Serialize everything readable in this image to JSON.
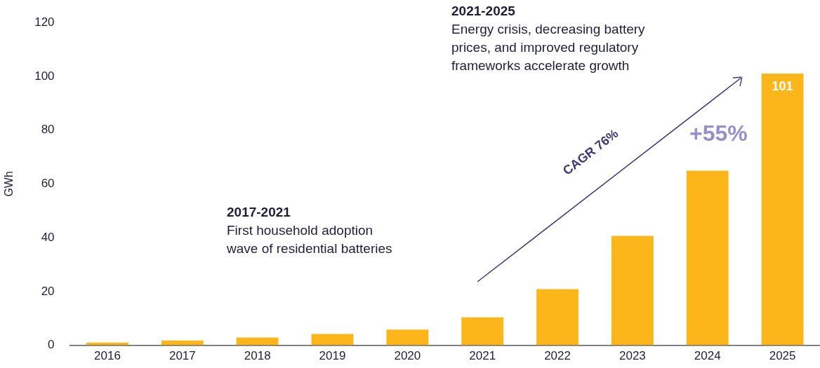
{
  "chart_data": {
    "type": "bar",
    "categories": [
      "2016",
      "2017",
      "2018",
      "2019",
      "2020",
      "2021",
      "2022",
      "2023",
      "2024",
      "2025"
    ],
    "values": [
      1.0,
      1.8,
      2.9,
      4.2,
      5.8,
      10.4,
      20.9,
      40.7,
      64.9,
      101
    ],
    "value_labels": [
      null,
      null,
      null,
      null,
      null,
      null,
      null,
      null,
      null,
      "101"
    ],
    "color": "#fcb61a",
    "ylabel": "GWh",
    "ylim": [
      0,
      120
    ],
    "yticks": [
      0,
      20,
      40,
      60,
      80,
      100,
      120
    ],
    "grid": false,
    "legend": false,
    "annotations": [
      "2017-2021",
      "First household adoption\nwave of residential batteries",
      "2021-2025",
      "Energy crisis, decreasing battery\nprices, and improved regulatory\nframeworks accelerate growth",
      "CAGR 76%",
      "+55%"
    ]
  }
}
